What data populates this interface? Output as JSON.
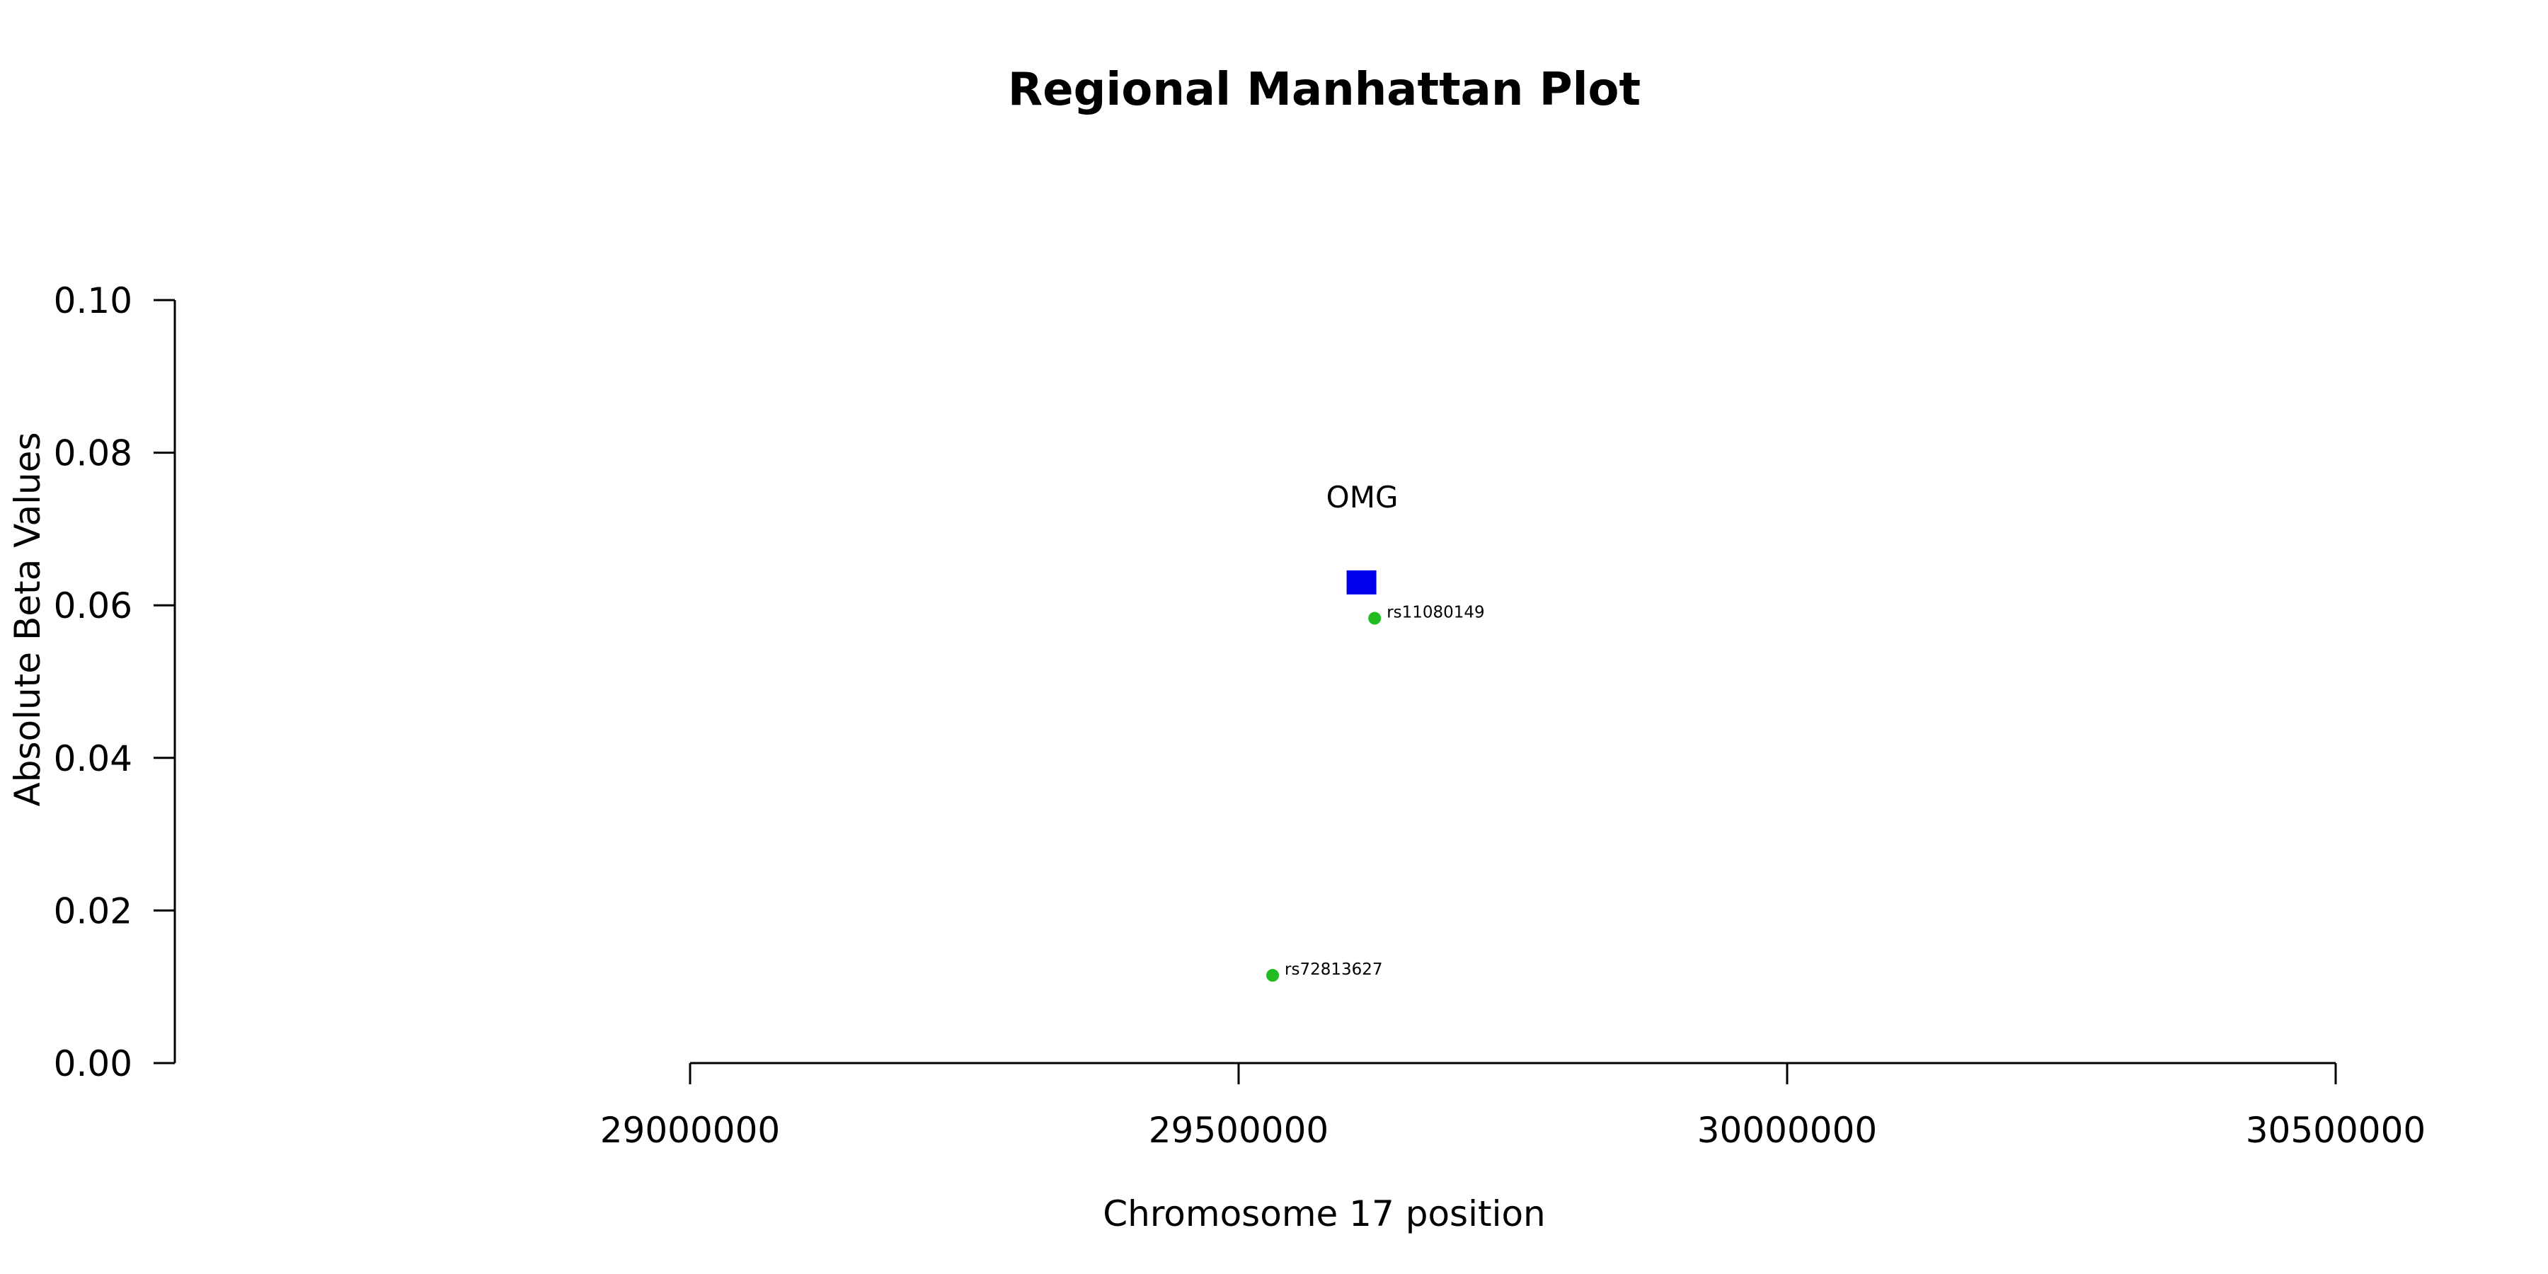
{
  "chart_data": {
    "type": "scatter",
    "title": "Regional Manhattan Plot",
    "xlabel": "Chromosome 17 position",
    "ylabel": "Absolute Beta Values",
    "xlim": [
      29000000,
      30500000
    ],
    "ylim": [
      0,
      0.1
    ],
    "x_ticks": [
      29000000,
      29500000,
      30000000,
      30500000
    ],
    "x_tick_labels": [
      "29000000",
      "29500000",
      "30000000",
      "30500000"
    ],
    "y_ticks": [
      0,
      0.02,
      0.04,
      0.06,
      0.08,
      0.1
    ],
    "y_tick_labels": [
      "0.00",
      "0.02",
      "0.04",
      "0.06",
      "0.08",
      "0.10"
    ],
    "grid": false,
    "points": [
      {
        "label": "rs72813627",
        "x": 29531000,
        "y": 0.0115,
        "color": "#22bb22",
        "shape": "circle"
      },
      {
        "label": "rs11080149",
        "x": 29624000,
        "y": 0.0583,
        "color": "#22bb22",
        "shape": "circle"
      }
    ],
    "genes": [
      {
        "label": "OMG",
        "x": 29612000,
        "y": 0.063,
        "color": "#0000ee",
        "shape": "square"
      }
    ]
  }
}
